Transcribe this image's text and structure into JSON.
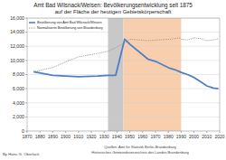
{
  "chart_data": {
    "type": "line",
    "title": "Amt Bad Wilsnack/Weisen: Bevölkerungsentwicklung seit 1875",
    "subtitle": "auf der Fläche der heutigen Gebietskörperschaft",
    "x": [
      1875,
      1890,
      1900,
      1910,
      1925,
      1933,
      1939,
      1946,
      1950,
      1964,
      1971,
      1981,
      1985,
      1989,
      1990,
      1995,
      2000,
      2005,
      2010,
      2015,
      2019
    ],
    "series": [
      {
        "name": "Bevölkerung von Amt Bad Wilsnack/Weisen",
        "color": "#4f7fc4",
        "line_style": "solid",
        "values": [
          8400,
          7900,
          7800,
          7700,
          7800,
          7900,
          7900,
          13000,
          12300,
          10200,
          9800,
          8900,
          8700,
          8400,
          8300,
          8000,
          7600,
          7000,
          6400,
          6100,
          6000
        ]
      },
      {
        "name": "Normalisierte Bevölkerung von Brandenburg",
        "color": "#999999",
        "line_style": "dotted",
        "values": [
          8400,
          9000,
          9800,
          10500,
          11000,
          11300,
          11800,
          12500,
          13000,
          12800,
          12900,
          13000,
          13100,
          13200,
          13000,
          12900,
          13200,
          13100,
          12800,
          12900,
          13100
        ]
      }
    ],
    "shaded_periods": [
      {
        "from": 1933,
        "to": 1945,
        "color": "#c8c8c8"
      },
      {
        "from": 1945,
        "to": 1990,
        "color": "#f8cfae"
      }
    ],
    "xlim": [
      1870,
      2020
    ],
    "xticks": [
      1870,
      1880,
      1890,
      1900,
      1910,
      1920,
      1930,
      1940,
      1950,
      1960,
      1970,
      1980,
      1990,
      2000,
      2010,
      2020
    ],
    "ylim": [
      0,
      16000
    ],
    "yticks": [
      0,
      {
        "value": 2000,
        "label": "2,000"
      },
      {
        "value": 4000,
        "label": "4,000"
      },
      {
        "value": 6000,
        "label": "6,000"
      },
      {
        "value": 8000,
        "label": "8,000"
      },
      {
        "value": 10000,
        "label": "10,000"
      },
      {
        "value": 12000,
        "label": "12,000"
      },
      {
        "value": 14000,
        "label": "14,000"
      },
      {
        "value": 16000,
        "label": "16,000"
      }
    ],
    "grid": true,
    "legend": "upper left",
    "annotations": [
      "By Hans G. Oberlack",
      "Quellen: Amt für Statistik Berlin-Brandenburg",
      "Historisches Gemeindeverzeichnis des Landes Brandenburg"
    ]
  }
}
